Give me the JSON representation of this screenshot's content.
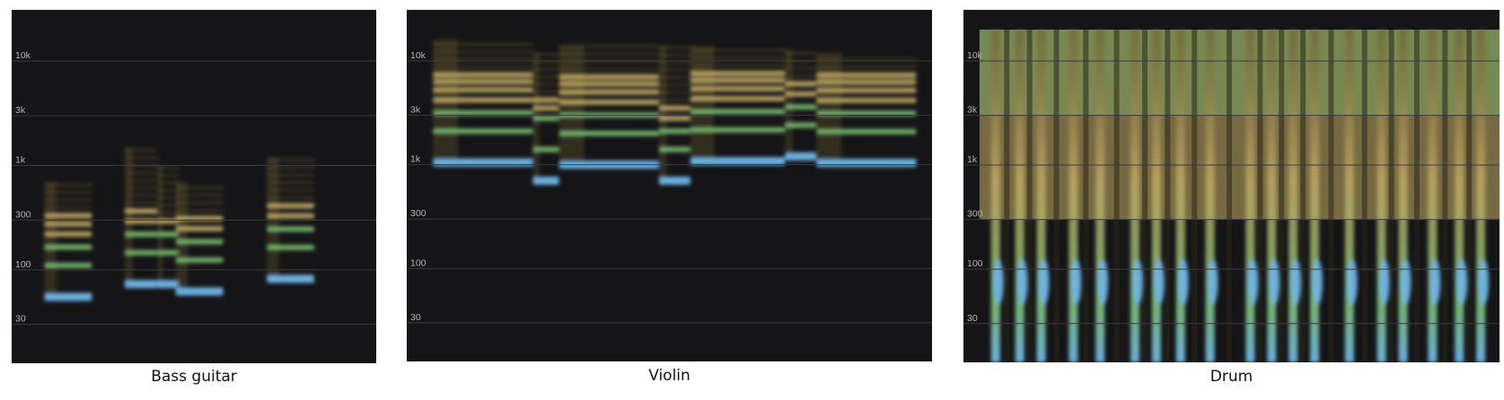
{
  "colors": {
    "background": "#151518",
    "gridline": "#3a3a40",
    "tick_label": "#b4b4b4",
    "energy_low": "#6b5a2e",
    "energy_mid": "#c9b067",
    "energy_high": "#7fc472",
    "energy_peak": "#6fb6e8"
  },
  "chart_data": [
    {
      "type": "heatmap",
      "caption": "Bass guitar",
      "y_scale": "log",
      "y_ticks": [
        "10k",
        "3k",
        "1k",
        "300",
        "100",
        "30"
      ],
      "grid": true,
      "notes": [
        {
          "start": 0.09,
          "end": 0.22,
          "partials_hz": [
            55,
            110,
            165,
            220,
            275,
            330
          ],
          "top_hz": 700
        },
        {
          "start": 0.31,
          "end": 0.4,
          "partials_hz": [
            73,
            146,
            219,
            292,
            365
          ],
          "top_hz": 1500
        },
        {
          "start": 0.4,
          "end": 0.46,
          "partials_hz": [
            73,
            146,
            219,
            292
          ],
          "top_hz": 1000
        },
        {
          "start": 0.45,
          "end": 0.58,
          "partials_hz": [
            62,
            124,
            186,
            248,
            310
          ],
          "top_hz": 700
        },
        {
          "start": 0.7,
          "end": 0.83,
          "partials_hz": [
            82,
            164,
            246,
            328,
            410
          ],
          "top_hz": 1200
        }
      ]
    },
    {
      "type": "heatmap",
      "caption": "Violin",
      "y_scale": "log",
      "y_ticks": [
        "10k",
        "3k",
        "1k",
        "300",
        "100",
        "30"
      ],
      "grid": true,
      "notes": [
        {
          "start": 0.05,
          "end": 0.24,
          "partials_hz": [
            1050,
            2100,
            3150,
            4200,
            5250,
            6300,
            7350
          ],
          "top_hz": 16000
        },
        {
          "start": 0.24,
          "end": 0.29,
          "partials_hz": [
            700,
            1400,
            2800,
            3500,
            4200
          ],
          "top_hz": 12000
        },
        {
          "start": 0.29,
          "end": 0.48,
          "partials_hz": [
            1000,
            2000,
            3000,
            4000,
            5000,
            6000,
            7000
          ],
          "top_hz": 14000
        },
        {
          "start": 0.48,
          "end": 0.54,
          "partials_hz": [
            700,
            1400,
            2100,
            2800,
            3500
          ],
          "top_hz": 14000
        },
        {
          "start": 0.54,
          "end": 0.72,
          "partials_hz": [
            1080,
            2160,
            3240,
            4320,
            5400,
            6480,
            7560
          ],
          "top_hz": 14000
        },
        {
          "start": 0.72,
          "end": 0.78,
          "partials_hz": [
            1200,
            2400,
            3600,
            4800,
            6000
          ],
          "top_hz": 13000
        },
        {
          "start": 0.78,
          "end": 0.97,
          "partials_hz": [
            1040,
            2080,
            3120,
            4160,
            5200,
            6240,
            7280
          ],
          "top_hz": 12000
        }
      ]
    },
    {
      "type": "heatmap",
      "caption": "Drum",
      "y_scale": "log",
      "y_ticks": [
        "10k",
        "3k",
        "1k",
        "300",
        "100",
        "30"
      ],
      "grid": true,
      "broadband_top_hz": 20000,
      "onsets": [
        0.06,
        0.105,
        0.145,
        0.205,
        0.255,
        0.32,
        0.36,
        0.405,
        0.46,
        0.535,
        0.575,
        0.615,
        0.655,
        0.72,
        0.78,
        0.82,
        0.875,
        0.925,
        0.965
      ]
    }
  ]
}
